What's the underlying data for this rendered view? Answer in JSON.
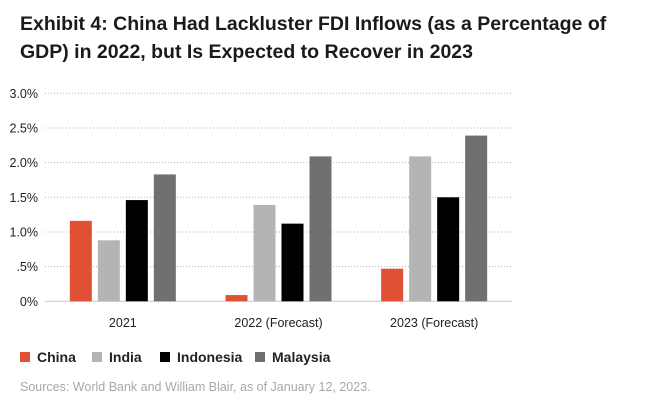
{
  "chart_data": {
    "type": "bar",
    "title": "Exhibit 4: China Had Lackluster FDI Inflows (as a Percentage of GDP) in 2022, but Is Expected to Recover in 2023",
    "categories": [
      "2021",
      "2022 (Forecast)",
      "2023 (Forecast)"
    ],
    "series": [
      {
        "name": "China",
        "color": "#e05035",
        "values": [
          1.16,
          0.09,
          0.47
        ]
      },
      {
        "name": "India",
        "color": "#b4b4b4",
        "values": [
          0.88,
          1.39,
          2.09
        ]
      },
      {
        "name": "Indonesia",
        "color": "#000000",
        "values": [
          1.46,
          1.12,
          1.5
        ]
      },
      {
        "name": "Malaysia",
        "color": "#707073",
        "values": [
          1.83,
          2.09,
          2.39
        ]
      }
    ],
    "ylim": [
      0,
      3.0
    ],
    "yticks": [
      0,
      0.5,
      1.0,
      1.5,
      2.0,
      2.5,
      3.0
    ],
    "ytick_labels": [
      "0%",
      ".5%",
      "1.0%",
      "1.5%",
      "2.0%",
      "2.5%",
      "3.0%"
    ],
    "xlabel": "",
    "ylabel": "",
    "grid": "horizontal dotted",
    "legend": "bottom-left",
    "source": "Sources: World Bank and William Blair, as of January 12, 2023."
  }
}
